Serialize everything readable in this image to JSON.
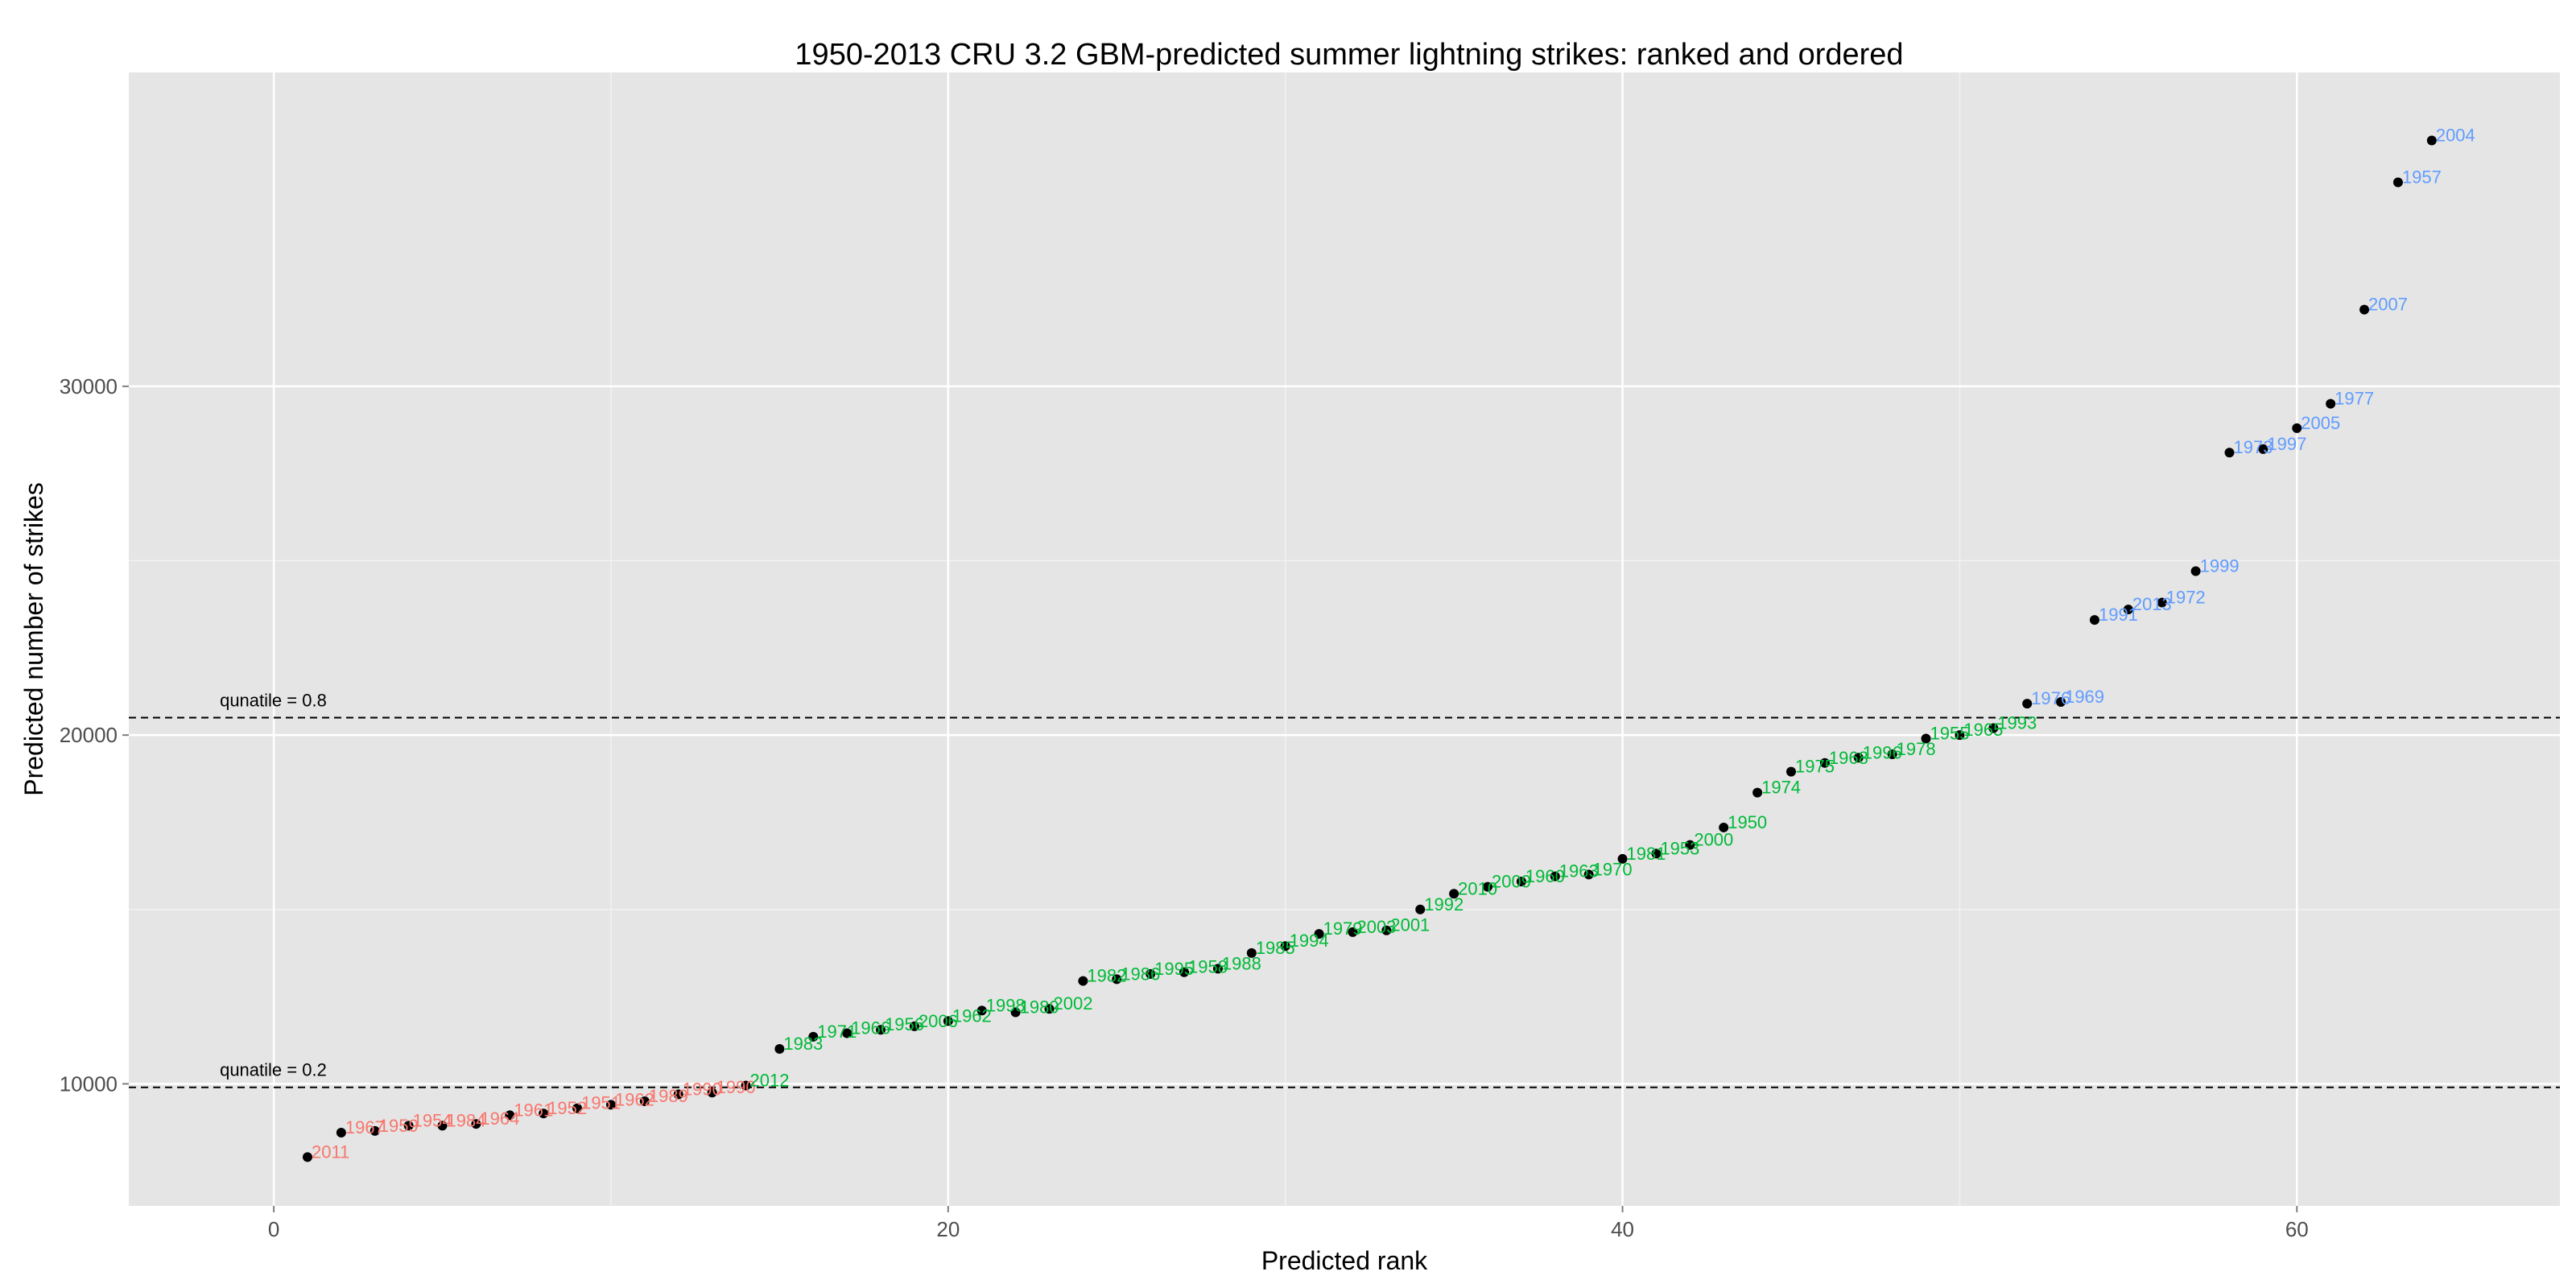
{
  "chart_data": {
    "type": "scatter",
    "title": "1950-2013 CRU 3.2 GBM-predicted summer lightning strikes: ranked and ordered",
    "xlabel": "Predicted rank",
    "ylabel": "Predicted number of strikes",
    "xlim": [
      -4.3,
      67.8
    ],
    "ylim": [
      6500,
      39000
    ],
    "x_ticks": [
      0,
      20,
      40,
      60
    ],
    "y_ticks": [
      10000,
      20000,
      30000
    ],
    "x_tick_labels": [
      "0",
      "20",
      "40",
      "60"
    ],
    "y_tick_labels": [
      "10000",
      "20000",
      "30000"
    ],
    "grid": true,
    "background": "#e5e5e5",
    "grid_color": "#ffffff",
    "point_color": "#000000",
    "reference_lines": [
      {
        "label": "qunatile = 0.8",
        "y": 20500,
        "style": "dashed"
      },
      {
        "label": "qunatile = 0.2",
        "y": 9900,
        "style": "dashed"
      }
    ],
    "groups": [
      {
        "id": "low",
        "color": "#f8766d"
      },
      {
        "id": "mid",
        "color": "#00ba38"
      },
      {
        "id": "high",
        "color": "#619cff"
      }
    ],
    "points": [
      {
        "x": 1,
        "y": 7900,
        "label": "2011",
        "group": "low"
      },
      {
        "x": 2,
        "y": 8600,
        "label": "1967",
        "group": "low"
      },
      {
        "x": 3,
        "y": 8650,
        "label": "1959",
        "group": "low"
      },
      {
        "x": 4,
        "y": 8800,
        "label": "1954",
        "group": "low"
      },
      {
        "x": 5,
        "y": 8800,
        "label": "1984",
        "group": "low"
      },
      {
        "x": 6,
        "y": 8850,
        "label": "1964",
        "group": "low"
      },
      {
        "x": 7,
        "y": 9100,
        "label": "1961",
        "group": "low"
      },
      {
        "x": 8,
        "y": 9150,
        "label": "1952",
        "group": "low"
      },
      {
        "x": 9,
        "y": 9300,
        "label": "1951",
        "group": "low"
      },
      {
        "x": 10,
        "y": 9400,
        "label": "1962",
        "group": "low"
      },
      {
        "x": 11,
        "y": 9500,
        "label": "1989",
        "group": "low"
      },
      {
        "x": 12,
        "y": 9700,
        "label": "1990",
        "group": "low"
      },
      {
        "x": 13,
        "y": 9750,
        "label": "1990",
        "group": "low"
      },
      {
        "x": 14,
        "y": 9950,
        "label": "2012",
        "group": "mid"
      },
      {
        "x": 15,
        "y": 11000,
        "label": "1983",
        "group": "mid"
      },
      {
        "x": 16,
        "y": 11350,
        "label": "1971",
        "group": "mid"
      },
      {
        "x": 17,
        "y": 11450,
        "label": "1966",
        "group": "mid"
      },
      {
        "x": 18,
        "y": 11550,
        "label": "1956",
        "group": "mid"
      },
      {
        "x": 19,
        "y": 11650,
        "label": "2006",
        "group": "mid"
      },
      {
        "x": 20,
        "y": 11800,
        "label": "1962",
        "group": "mid"
      },
      {
        "x": 21,
        "y": 12100,
        "label": "1998",
        "group": "mid"
      },
      {
        "x": 22,
        "y": 12050,
        "label": "1980",
        "group": "mid"
      },
      {
        "x": 23,
        "y": 12150,
        "label": "2002",
        "group": "mid"
      },
      {
        "x": 24,
        "y": 12950,
        "label": "1982",
        "group": "mid"
      },
      {
        "x": 25,
        "y": 13000,
        "label": "1986",
        "group": "mid"
      },
      {
        "x": 26,
        "y": 13150,
        "label": "1995",
        "group": "mid"
      },
      {
        "x": 27,
        "y": 13200,
        "label": "1958",
        "group": "mid"
      },
      {
        "x": 28,
        "y": 13300,
        "label": "1988",
        "group": "mid"
      },
      {
        "x": 29,
        "y": 13750,
        "label": "1985",
        "group": "mid"
      },
      {
        "x": 30,
        "y": 13950,
        "label": "1994",
        "group": "mid"
      },
      {
        "x": 31,
        "y": 14300,
        "label": "1979",
        "group": "mid"
      },
      {
        "x": 32,
        "y": 14350,
        "label": "2003",
        "group": "mid"
      },
      {
        "x": 33,
        "y": 14400,
        "label": "2001",
        "group": "mid"
      },
      {
        "x": 34,
        "y": 15000,
        "label": "1992",
        "group": "mid"
      },
      {
        "x": 35,
        "y": 15450,
        "label": "2010",
        "group": "mid"
      },
      {
        "x": 36,
        "y": 15650,
        "label": "2009",
        "group": "mid"
      },
      {
        "x": 37,
        "y": 15800,
        "label": "1960",
        "group": "mid"
      },
      {
        "x": 38,
        "y": 15950,
        "label": "1963",
        "group": "mid"
      },
      {
        "x": 39,
        "y": 16000,
        "label": "1970",
        "group": "mid"
      },
      {
        "x": 40,
        "y": 16450,
        "label": "1981",
        "group": "mid"
      },
      {
        "x": 41,
        "y": 16600,
        "label": "1953",
        "group": "mid"
      },
      {
        "x": 42,
        "y": 16850,
        "label": "2000",
        "group": "mid"
      },
      {
        "x": 43,
        "y": 17350,
        "label": "1950",
        "group": "mid"
      },
      {
        "x": 44,
        "y": 18350,
        "label": "1974",
        "group": "mid"
      },
      {
        "x": 45,
        "y": 18950,
        "label": "1975",
        "group": "mid"
      },
      {
        "x": 46,
        "y": 19200,
        "label": "1968",
        "group": "mid"
      },
      {
        "x": 47,
        "y": 19350,
        "label": "1996",
        "group": "mid"
      },
      {
        "x": 48,
        "y": 19450,
        "label": "1978",
        "group": "mid"
      },
      {
        "x": 49,
        "y": 19900,
        "label": "1955",
        "group": "mid"
      },
      {
        "x": 50,
        "y": 20000,
        "label": "1965",
        "group": "mid"
      },
      {
        "x": 51,
        "y": 20200,
        "label": "1993",
        "group": "mid"
      },
      {
        "x": 52,
        "y": 20900,
        "label": "1976",
        "group": "high"
      },
      {
        "x": 53,
        "y": 20950,
        "label": "1969",
        "group": "high"
      },
      {
        "x": 54,
        "y": 23300,
        "label": "1991",
        "group": "high"
      },
      {
        "x": 55,
        "y": 23600,
        "label": "2013",
        "group": "high"
      },
      {
        "x": 56,
        "y": 23800,
        "label": "1972",
        "group": "high"
      },
      {
        "x": 57,
        "y": 24700,
        "label": "1999",
        "group": "high"
      },
      {
        "x": 58,
        "y": 28100,
        "label": "1973",
        "group": "high"
      },
      {
        "x": 59,
        "y": 28200,
        "label": "1997",
        "group": "high"
      },
      {
        "x": 60,
        "y": 28800,
        "label": "2005",
        "group": "high"
      },
      {
        "x": 61,
        "y": 29500,
        "label": "1977",
        "group": "high"
      },
      {
        "x": 62,
        "y": 32200,
        "label": "2007",
        "group": "high"
      },
      {
        "x": 63,
        "y": 35850,
        "label": "1957",
        "group": "high"
      },
      {
        "x": 64,
        "y": 37050,
        "label": "2004",
        "group": "high"
      }
    ]
  }
}
